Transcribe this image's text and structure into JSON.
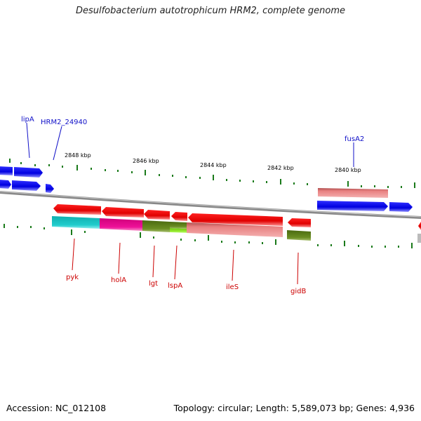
{
  "title": "Desulfobacterium autotrophicum HRM2, complete genome",
  "footer": {
    "accession": "Accession: NC_012108",
    "summary": "Topology: circular; Length: 5,589,073 bp; Genes: 4,936"
  },
  "ticks": [
    "2848 kbp",
    "2846 kbp",
    "2844 kbp",
    "2842 kbp",
    "2840 kbp"
  ],
  "genes_top": [
    "lipA",
    "HRM2_24940",
    "fusA2"
  ],
  "genes_bottom": [
    "pyk",
    "holA",
    "lgt",
    "lspA",
    "ileS",
    "gidB"
  ],
  "colors": {
    "forward_gene": "#0000ee",
    "reverse_gene": "#ee0000",
    "rna_pink": "#e88080",
    "cyan": "#20cccc",
    "magenta": "#ee1199",
    "olive": "#6b8e23",
    "lime": "#99ee33",
    "tick_green": "#1a7a1a",
    "backbone": "#808080"
  }
}
